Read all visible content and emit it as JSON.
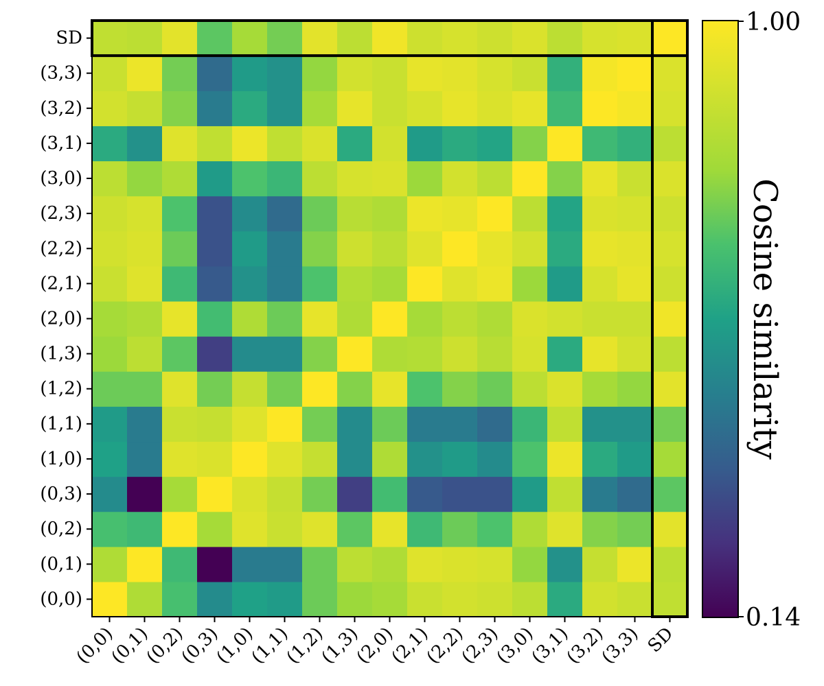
{
  "chart_data": {
    "type": "heatmap",
    "title": "",
    "xlabel": "",
    "ylabel": "",
    "x_labels": [
      "(0,0)",
      "(0,1)",
      "(0,2)",
      "(0,3)",
      "(1,0)",
      "(1,1)",
      "(1,2)",
      "(1,3)",
      "(2,0)",
      "(2,1)",
      "(2,2)",
      "(2,3)",
      "(3,0)",
      "(3,1)",
      "(3,2)",
      "(3,3)",
      "SD"
    ],
    "y_labels": [
      "(0,0)",
      "(0,1)",
      "(0,2)",
      "(0,3)",
      "(1,0)",
      "(1,1)",
      "(1,2)",
      "(1,3)",
      "(2,0)",
      "(2,1)",
      "(2,2)",
      "(2,3)",
      "(3,0)",
      "(3,1)",
      "(3,2)",
      "(3,3)",
      "SD"
    ],
    "y_order": "bottom-to-top",
    "values": [
      [
        1.0,
        0.82,
        0.67,
        0.5,
        0.57,
        0.55,
        0.72,
        0.78,
        0.8,
        0.88,
        0.9,
        0.89,
        0.85,
        0.6,
        0.9,
        0.88,
        0.86
      ],
      [
        0.82,
        1.0,
        0.65,
        0.14,
        0.45,
        0.45,
        0.72,
        0.85,
        0.82,
        0.93,
        0.92,
        0.91,
        0.77,
        0.52,
        0.87,
        0.96,
        0.85
      ],
      [
        0.67,
        0.65,
        1.0,
        0.8,
        0.93,
        0.88,
        0.93,
        0.7,
        0.95,
        0.65,
        0.72,
        0.68,
        0.82,
        0.93,
        0.75,
        0.73,
        0.94
      ],
      [
        0.5,
        0.14,
        0.8,
        1.0,
        0.92,
        0.87,
        0.73,
        0.28,
        0.66,
        0.35,
        0.33,
        0.33,
        0.55,
        0.86,
        0.45,
        0.4,
        0.7
      ],
      [
        0.57,
        0.45,
        0.93,
        0.92,
        1.0,
        0.93,
        0.87,
        0.5,
        0.82,
        0.52,
        0.55,
        0.5,
        0.68,
        0.96,
        0.6,
        0.55,
        0.8
      ],
      [
        0.55,
        0.45,
        0.88,
        0.87,
        0.93,
        1.0,
        0.73,
        0.5,
        0.72,
        0.45,
        0.45,
        0.4,
        0.64,
        0.86,
        0.52,
        0.52,
        0.73
      ],
      [
        0.72,
        0.72,
        0.93,
        0.73,
        0.87,
        0.73,
        1.0,
        0.75,
        0.95,
        0.68,
        0.75,
        0.72,
        0.85,
        0.92,
        0.8,
        0.77,
        0.94
      ],
      [
        0.78,
        0.85,
        0.7,
        0.28,
        0.5,
        0.5,
        0.75,
        1.0,
        0.82,
        0.83,
        0.89,
        0.84,
        0.91,
        0.6,
        0.95,
        0.9,
        0.85
      ],
      [
        0.8,
        0.82,
        0.95,
        0.66,
        0.82,
        0.72,
        0.95,
        0.82,
        1.0,
        0.8,
        0.85,
        0.82,
        0.92,
        0.9,
        0.88,
        0.88,
        0.97
      ],
      [
        0.88,
        0.93,
        0.65,
        0.35,
        0.52,
        0.45,
        0.68,
        0.83,
        0.8,
        1.0,
        0.93,
        0.96,
        0.78,
        0.55,
        0.91,
        0.95,
        0.89
      ],
      [
        0.9,
        0.92,
        0.72,
        0.33,
        0.55,
        0.45,
        0.75,
        0.89,
        0.85,
        0.93,
        1.0,
        0.95,
        0.9,
        0.6,
        0.95,
        0.94,
        0.91
      ],
      [
        0.89,
        0.91,
        0.68,
        0.33,
        0.5,
        0.4,
        0.72,
        0.84,
        0.82,
        0.96,
        0.95,
        1.0,
        0.85,
        0.58,
        0.92,
        0.91,
        0.89
      ],
      [
        0.85,
        0.77,
        0.82,
        0.55,
        0.68,
        0.64,
        0.85,
        0.91,
        0.92,
        0.78,
        0.9,
        0.85,
        1.0,
        0.75,
        0.95,
        0.88,
        0.92
      ],
      [
        0.6,
        0.52,
        0.93,
        0.86,
        0.96,
        0.86,
        0.92,
        0.6,
        0.9,
        0.55,
        0.6,
        0.58,
        0.75,
        1.0,
        0.65,
        0.62,
        0.85
      ],
      [
        0.9,
        0.87,
        0.75,
        0.45,
        0.6,
        0.52,
        0.8,
        0.95,
        0.88,
        0.91,
        0.95,
        0.92,
        0.95,
        0.65,
        1.0,
        0.98,
        0.91
      ],
      [
        0.88,
        0.96,
        0.73,
        0.4,
        0.55,
        0.52,
        0.77,
        0.9,
        0.88,
        0.95,
        0.94,
        0.91,
        0.88,
        0.62,
        0.98,
        1.0,
        0.92
      ],
      [
        0.86,
        0.85,
        0.94,
        0.7,
        0.8,
        0.73,
        0.94,
        0.85,
        0.97,
        0.89,
        0.91,
        0.89,
        0.92,
        0.85,
        0.91,
        0.92,
        1.0
      ]
    ],
    "colormap": "viridis",
    "color_range": [
      0.14,
      1.0
    ],
    "colorbar": {
      "label": "Cosine similarity",
      "max_label": "1.00",
      "min_label": "0.14"
    },
    "highlight": "boxes around SD row and SD column"
  }
}
